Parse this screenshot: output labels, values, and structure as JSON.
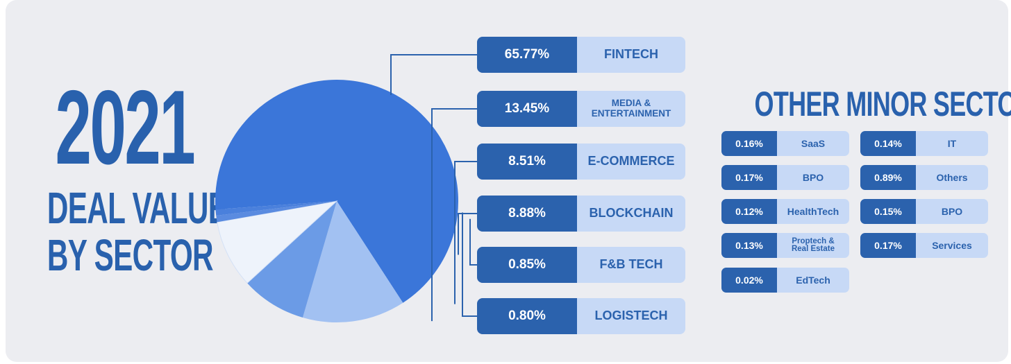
{
  "title": {
    "year": "2021",
    "line2": "DEAL VALUE",
    "line3": "BY SECTOR"
  },
  "colors": {
    "background": "#ecedf1",
    "accent": "#2b62ad",
    "pill_light": "#c7d9f6"
  },
  "chart_data": {
    "type": "pie",
    "title": "2021 DEAL VALUE BY SECTOR",
    "slices": [
      {
        "label": "FINTECH",
        "value": 65.77,
        "display": "65.77%",
        "color": "#3b76d9"
      },
      {
        "label": "MEDIA &\nENTERTAINMENT",
        "value": 13.45,
        "display": "13.45%",
        "color": "#a2c1f2"
      },
      {
        "label": "E-COMMERCE",
        "value": 8.51,
        "display": "8.51%",
        "color": "#6b9be6"
      },
      {
        "label": "BLOCKCHAIN",
        "value": 8.88,
        "display": "8.88%",
        "color": "#eef3fb"
      },
      {
        "label": "F&B TECH",
        "value": 0.85,
        "display": "0.85%",
        "color": "#5a8be0"
      },
      {
        "label": "LOGISTECH",
        "value": 0.8,
        "display": "0.80%",
        "color": "#4a80dc"
      }
    ],
    "other_minor_sectors": {
      "title": "OTHER MINOR SECTORS",
      "items": [
        {
          "label": "SaaS",
          "display": "0.16%"
        },
        {
          "label": "IT",
          "display": "0.14%"
        },
        {
          "label": "BPO",
          "display": "0.17%"
        },
        {
          "label": "Others",
          "display": "0.89%"
        },
        {
          "label": "HealthTech",
          "display": "0.12%"
        },
        {
          "label": "BPO",
          "display": "0.15%"
        },
        {
          "label": "Proptech &\nReal Estate",
          "display": "0.13%"
        },
        {
          "label": "Services",
          "display": "0.17%"
        },
        {
          "label": "EdTech",
          "display": "0.02%"
        }
      ]
    }
  }
}
